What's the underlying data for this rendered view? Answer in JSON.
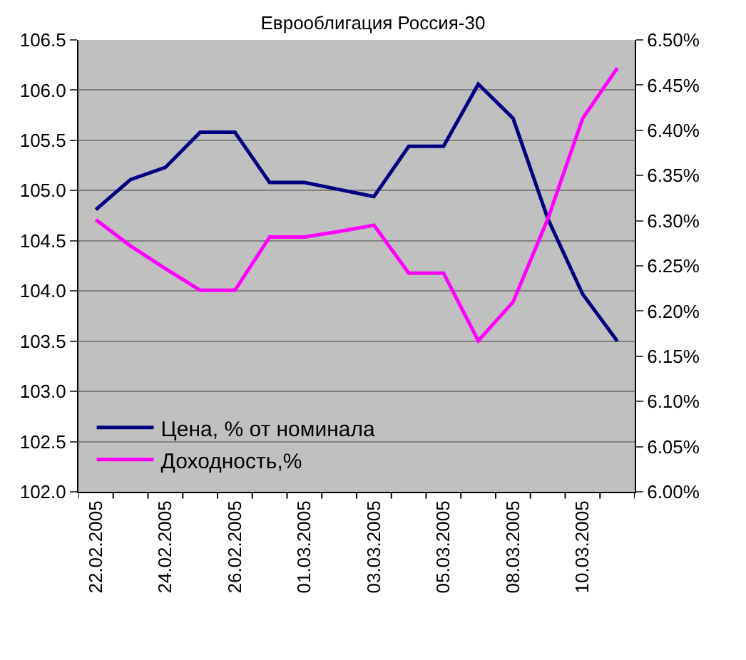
{
  "chart_data": {
    "type": "line",
    "title": "Еврооблигация Россия-30",
    "categories": [
      "22.02.2005",
      null,
      "24.02.2005",
      null,
      "26.02.2005",
      null,
      "01.03.2005",
      null,
      "03.03.2005",
      null,
      "05.03.2005",
      null,
      "08.03.2005",
      null,
      "10.03.2005",
      null
    ],
    "series": [
      {
        "name": "Цена, % от номинала",
        "color": "#000080",
        "values": [
          104.81,
          105.11,
          105.23,
          105.58,
          105.58,
          105.08,
          105.08,
          105.01,
          104.94,
          105.44,
          105.44,
          106.06,
          105.72,
          104.72,
          103.97,
          103.5
        ]
      },
      {
        "name": "Доходность,%",
        "color": "#ff00ff",
        "axis": "y2",
        "values": [
          6.301,
          6.272,
          6.247,
          6.223,
          6.223,
          6.282,
          6.282,
          6.288,
          6.295,
          6.242,
          6.242,
          6.167,
          6.21,
          6.302,
          6.413,
          6.469
        ]
      }
    ],
    "ylim": [
      102.0,
      106.5
    ],
    "yticks": [
      {
        "value": 102,
        "label": "102.0"
      },
      {
        "value": 102.5,
        "label": "102.5"
      },
      {
        "value": 103,
        "label": "103.0"
      },
      {
        "value": 103.5,
        "label": "103.5"
      },
      {
        "value": 104,
        "label": "104.0"
      },
      {
        "value": 104.5,
        "label": "104.5"
      },
      {
        "value": 105,
        "label": "105.0"
      },
      {
        "value": 105.5,
        "label": "105.5"
      },
      {
        "value": 106,
        "label": "106.0"
      },
      {
        "value": 106.5,
        "label": "106.5"
      }
    ],
    "y2lim": [
      6.0,
      6.5
    ],
    "y2ticks": [
      {
        "value": 6.0,
        "label": "6.00%"
      },
      {
        "value": 6.05,
        "label": "6.05%"
      },
      {
        "value": 6.1,
        "label": "6.10%"
      },
      {
        "value": 6.15,
        "label": "6.15%"
      },
      {
        "value": 6.2,
        "label": "6.20%"
      },
      {
        "value": 6.25,
        "label": "6.25%"
      },
      {
        "value": 6.3,
        "label": "6.30%"
      },
      {
        "value": 6.35,
        "label": "6.35%"
      },
      {
        "value": 6.4,
        "label": "6.40%"
      },
      {
        "value": 6.45,
        "label": "6.45%"
      },
      {
        "value": 6.5,
        "label": "6.50%"
      }
    ],
    "grid": "y",
    "legend": "bottom left",
    "marker": "none",
    "line_style": "solid"
  }
}
